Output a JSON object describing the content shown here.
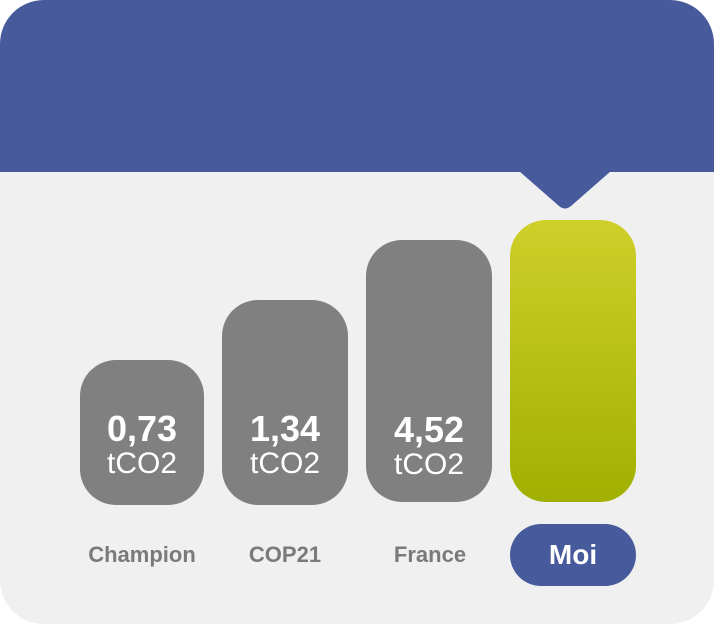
{
  "chart_data": {
    "type": "bar",
    "categories": [
      "Champion",
      "COP21",
      "France",
      "Moi"
    ],
    "values": [
      0.73,
      1.34,
      4.52,
      null
    ],
    "value_labels": [
      "0,73",
      "1,34",
      "4,52",
      ""
    ],
    "unit": "tCO2",
    "highlight_category": "Moi"
  },
  "colors": {
    "header": "#465a9c",
    "background": "#f0f0f0",
    "bar_grey": "#808080",
    "bar_user_top": "#cfcf29",
    "bar_user_bottom": "#a1b000",
    "label": "#7a7a7a",
    "pill": "#465a9c"
  }
}
